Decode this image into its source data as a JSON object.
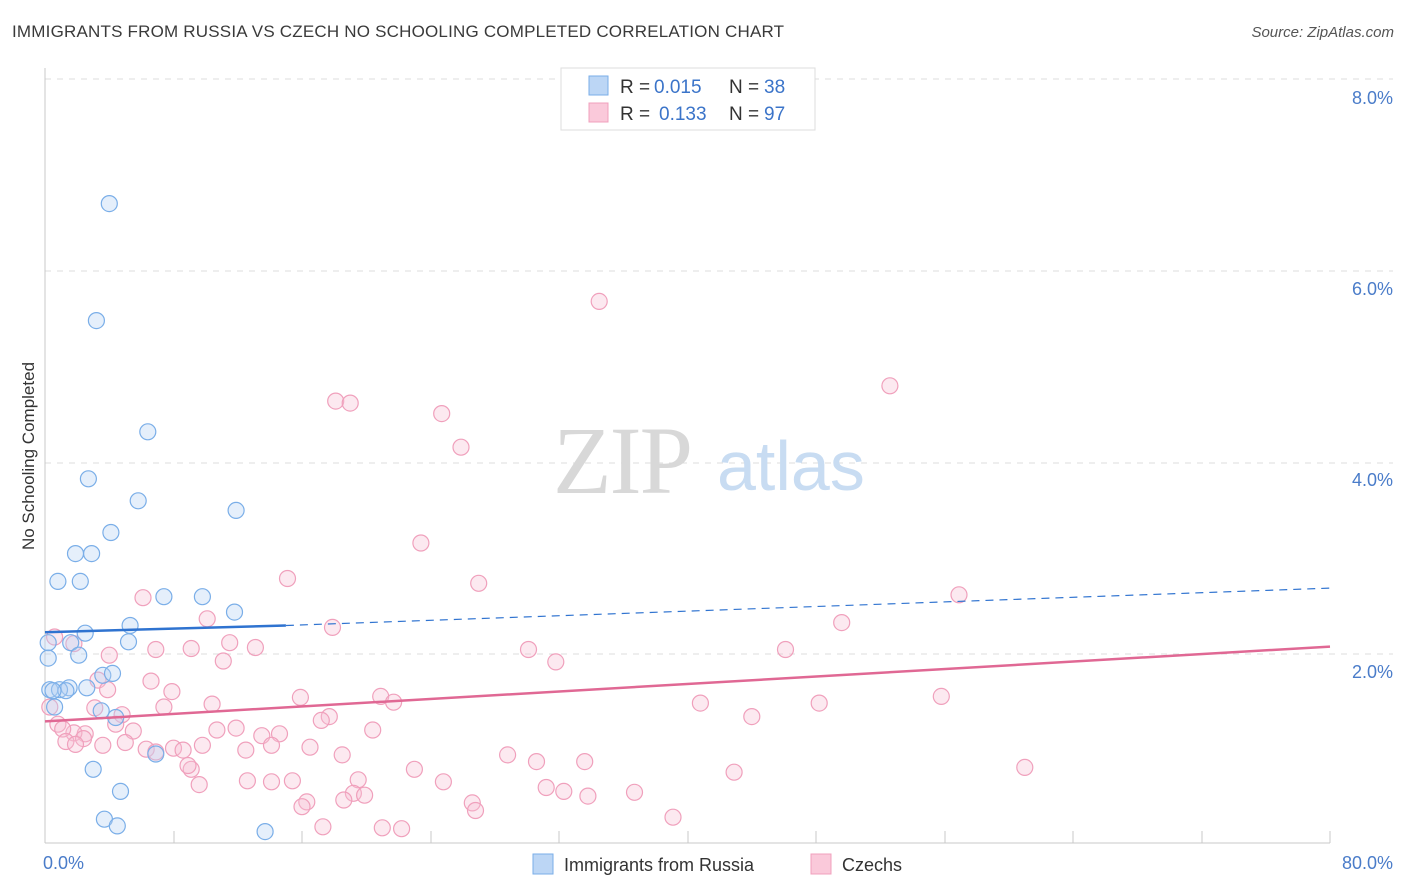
{
  "title": "IMMIGRANTS FROM RUSSIA VS CZECH NO SCHOOLING COMPLETED CORRELATION CHART",
  "source": "Source: ZipAtlas.com",
  "watermark": {
    "zip": "ZIP",
    "atlas": "atlas"
  },
  "colors": {
    "blue": "#7aaee8",
    "pink": "#f0a0bc",
    "blue_line": "#2f73d0",
    "pink_line": "#e06894",
    "tick": "#4a7cc9"
  },
  "legend": {
    "r_label": "R =",
    "n_label": "N =",
    "rows": [
      {
        "r": "0.015",
        "n": "38"
      },
      {
        "r": "0.133",
        "n": "97"
      }
    ]
  },
  "chart_data": {
    "type": "scatter",
    "ylabel": "No Schooling Completed",
    "x_tick_labels": [
      "0.0%",
      "80.0%"
    ],
    "y_tick_labels": [
      "2.0%",
      "4.0%",
      "6.0%",
      "8.0%"
    ],
    "xlim": [
      0,
      80
    ],
    "ylim": [
      0,
      8
    ],
    "grid": true,
    "series": [
      {
        "name": "Immigrants from Russia",
        "color": "#7aaee8",
        "trend": {
          "x": [
            0,
            15
          ],
          "y": [
            2.23,
            2.3
          ],
          "dashed_to": [
            80,
            2.69
          ]
        },
        "points": [
          [
            4.0,
            6.7
          ],
          [
            3.2,
            5.48
          ],
          [
            6.4,
            4.32
          ],
          [
            2.7,
            3.83
          ],
          [
            5.8,
            3.6
          ],
          [
            11.9,
            3.5
          ],
          [
            4.1,
            3.27
          ],
          [
            1.9,
            3.05
          ],
          [
            2.9,
            3.05
          ],
          [
            0.8,
            2.76
          ],
          [
            2.2,
            2.76
          ],
          [
            7.4,
            2.6
          ],
          [
            9.8,
            2.6
          ],
          [
            11.8,
            2.44
          ],
          [
            5.3,
            2.3
          ],
          [
            2.5,
            2.22
          ],
          [
            5.2,
            2.13
          ],
          [
            1.6,
            2.12
          ],
          [
            0.2,
            2.12
          ],
          [
            2.1,
            1.99
          ],
          [
            0.2,
            1.96
          ],
          [
            3.6,
            1.78
          ],
          [
            4.2,
            1.8
          ],
          [
            1.5,
            1.65
          ],
          [
            0.3,
            1.63
          ],
          [
            0.9,
            1.63
          ],
          [
            1.3,
            1.62
          ],
          [
            0.5,
            1.62
          ],
          [
            2.6,
            1.65
          ],
          [
            0.6,
            1.45
          ],
          [
            3.5,
            1.41
          ],
          [
            4.4,
            1.34
          ],
          [
            6.9,
            0.96
          ],
          [
            3.0,
            0.8
          ],
          [
            4.7,
            0.57
          ],
          [
            3.7,
            0.28
          ],
          [
            4.5,
            0.21
          ],
          [
            13.7,
            0.15
          ]
        ]
      },
      {
        "name": "Czechs",
        "color": "#f0a0bc",
        "trend": {
          "x": [
            0,
            80
          ],
          "y": [
            1.3,
            2.08
          ]
        },
        "points": [
          [
            34.5,
            5.68
          ],
          [
            52.6,
            4.8
          ],
          [
            18.1,
            4.64
          ],
          [
            19.0,
            4.62
          ],
          [
            24.7,
            4.51
          ],
          [
            25.9,
            4.16
          ],
          [
            23.4,
            3.16
          ],
          [
            15.1,
            2.79
          ],
          [
            27.0,
            2.74
          ],
          [
            56.9,
            2.62
          ],
          [
            6.1,
            2.59
          ],
          [
            10.1,
            2.37
          ],
          [
            17.9,
            2.28
          ],
          [
            49.6,
            2.33
          ],
          [
            11.5,
            2.12
          ],
          [
            13.1,
            2.07
          ],
          [
            9.1,
            2.06
          ],
          [
            6.9,
            2.05
          ],
          [
            30.1,
            2.05
          ],
          [
            46.1,
            2.05
          ],
          [
            4.0,
            1.99
          ],
          [
            11.1,
            1.93
          ],
          [
            31.8,
            1.92
          ],
          [
            6.6,
            1.72
          ],
          [
            3.3,
            1.73
          ],
          [
            3.9,
            1.63
          ],
          [
            7.9,
            1.61
          ],
          [
            15.9,
            1.55
          ],
          [
            20.9,
            1.56
          ],
          [
            21.7,
            1.5
          ],
          [
            10.4,
            1.48
          ],
          [
            40.8,
            1.49
          ],
          [
            48.2,
            1.49
          ],
          [
            55.8,
            1.56
          ],
          [
            7.4,
            1.45
          ],
          [
            3.1,
            1.44
          ],
          [
            17.7,
            1.35
          ],
          [
            17.2,
            1.31
          ],
          [
            4.8,
            1.37
          ],
          [
            44.0,
            1.35
          ],
          [
            0.3,
            1.45
          ],
          [
            0.8,
            1.27
          ],
          [
            2.5,
            1.17
          ],
          [
            4.4,
            1.27
          ],
          [
            1.8,
            1.18
          ],
          [
            1.1,
            1.22
          ],
          [
            5.5,
            1.2
          ],
          [
            10.7,
            1.21
          ],
          [
            11.9,
            1.23
          ],
          [
            14.6,
            1.17
          ],
          [
            20.4,
            1.21
          ],
          [
            13.5,
            1.15
          ],
          [
            1.3,
            1.09
          ],
          [
            3.6,
            1.05
          ],
          [
            2.4,
            1.12
          ],
          [
            5.0,
            1.08
          ],
          [
            1.9,
            1.06
          ],
          [
            8.0,
            1.02
          ],
          [
            9.8,
            1.05
          ],
          [
            6.3,
            1.01
          ],
          [
            8.6,
            1.0
          ],
          [
            12.5,
            1.0
          ],
          [
            14.1,
            1.05
          ],
          [
            16.5,
            1.03
          ],
          [
            6.9,
            0.98
          ],
          [
            18.5,
            0.95
          ],
          [
            28.8,
            0.95
          ],
          [
            30.6,
            0.88
          ],
          [
            33.6,
            0.88
          ],
          [
            9.1,
            0.8
          ],
          [
            8.9,
            0.84
          ],
          [
            23.0,
            0.8
          ],
          [
            42.9,
            0.77
          ],
          [
            61.0,
            0.82
          ],
          [
            12.6,
            0.68
          ],
          [
            14.1,
            0.67
          ],
          [
            15.4,
            0.68
          ],
          [
            19.5,
            0.69
          ],
          [
            24.8,
            0.67
          ],
          [
            9.6,
            0.64
          ],
          [
            31.2,
            0.61
          ],
          [
            32.3,
            0.57
          ],
          [
            33.8,
            0.52
          ],
          [
            36.7,
            0.56
          ],
          [
            19.2,
            0.55
          ],
          [
            19.9,
            0.53
          ],
          [
            18.6,
            0.48
          ],
          [
            26.6,
            0.45
          ],
          [
            16.3,
            0.46
          ],
          [
            16.0,
            0.41
          ],
          [
            26.8,
            0.37
          ],
          [
            39.1,
            0.3
          ],
          [
            17.3,
            0.2
          ],
          [
            21.0,
            0.19
          ],
          [
            22.2,
            0.18
          ],
          [
            0.6,
            2.18
          ],
          [
            1.8,
            2.11
          ]
        ]
      }
    ]
  }
}
